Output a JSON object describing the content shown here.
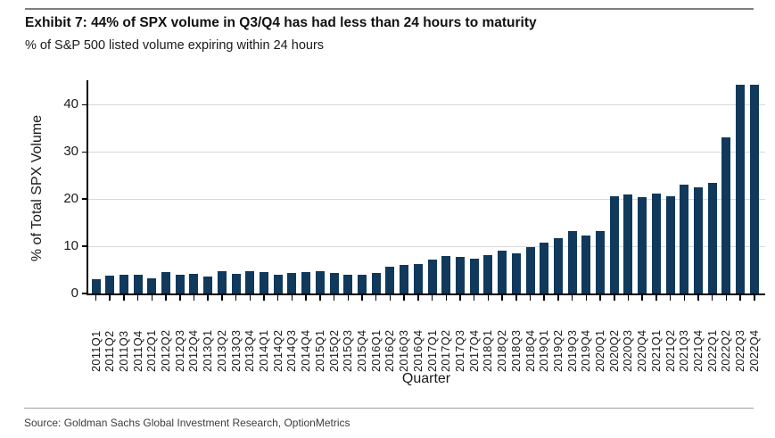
{
  "header": {
    "title": "Exhibit 7: 44% of SPX volume in Q3/Q4 has had less than 24 hours to maturity",
    "subtitle": "% of S&P 500 listed volume expiring within 24 hours"
  },
  "chart_data": {
    "type": "bar",
    "title": "Exhibit 7: 44% of SPX volume in Q3/Q4 has had less than 24 hours to maturity",
    "subtitle": "% of S&P 500 listed volume expiring within 24 hours",
    "xlabel": "Quarter",
    "ylabel": "% of Total SPX Volume",
    "ylim": [
      0,
      45
    ],
    "yticks": [
      0,
      10,
      20,
      30,
      40
    ],
    "grid": "horizontal-light-gray",
    "legend": "none",
    "bar_color": "#10395c",
    "categories": [
      "2011Q1",
      "2011Q2",
      "2011Q3",
      "2011Q4",
      "2012Q1",
      "2012Q2",
      "2012Q3",
      "2012Q4",
      "2013Q1",
      "2013Q2",
      "2013Q3",
      "2013Q4",
      "2014Q1",
      "2014Q2",
      "2014Q3",
      "2014Q4",
      "2015Q1",
      "2015Q2",
      "2015Q3",
      "2015Q4",
      "2016Q1",
      "2016Q2",
      "2016Q3",
      "2016Q4",
      "2017Q1",
      "2017Q2",
      "2017Q3",
      "2017Q4",
      "2018Q1",
      "2018Q2",
      "2018Q3",
      "2018Q4",
      "2019Q1",
      "2019Q2",
      "2019Q3",
      "2019Q4",
      "2020Q1",
      "2020Q2",
      "2020Q3",
      "2020Q4",
      "2021Q1",
      "2021Q2",
      "2021Q3",
      "2021Q4",
      "2022Q1",
      "2022Q2",
      "2022Q3",
      "2022Q4"
    ],
    "values": [
      3.0,
      3.8,
      3.9,
      4.0,
      3.2,
      4.6,
      4.0,
      4.2,
      3.6,
      4.8,
      4.2,
      4.7,
      4.6,
      4.0,
      4.3,
      4.5,
      4.8,
      4.3,
      4.0,
      3.9,
      4.3,
      5.7,
      6.0,
      6.3,
      7.1,
      8.0,
      7.8,
      7.4,
      8.2,
      9.0,
      8.5,
      9.8,
      10.8,
      11.7,
      13.2,
      12.3,
      13.3,
      20.6,
      21.0,
      20.4,
      21.1,
      20.6,
      23.0,
      22.5,
      23.5,
      33.0,
      44.2,
      44.3
    ]
  },
  "footer": {
    "source": "Source: Goldman Sachs Global Investment Research, OptionMetrics"
  }
}
